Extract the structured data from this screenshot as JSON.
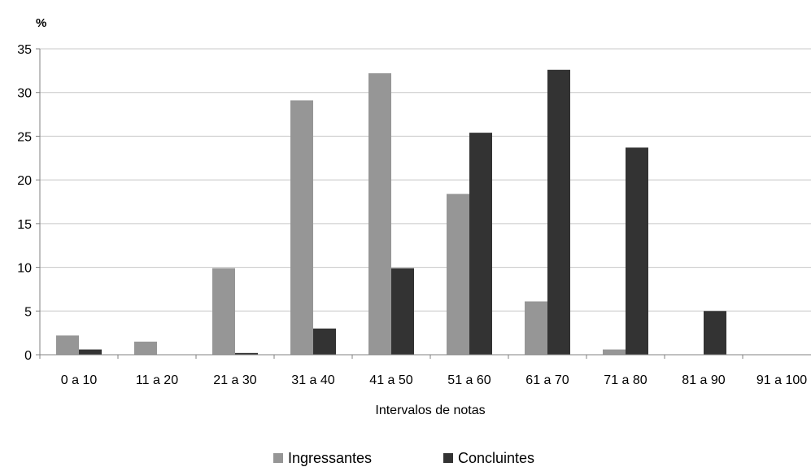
{
  "chart_data": {
    "type": "bar",
    "unit_label": "%",
    "xlabel": "Intervalos de notas",
    "ylabel": "",
    "ylim": [
      0,
      35
    ],
    "yticks": [
      0,
      5,
      10,
      15,
      20,
      25,
      30,
      35
    ],
    "categories": [
      "0 a 10",
      "11 a 20",
      "21 a 30",
      "31 a 40",
      "41 a 50",
      "51 a 60",
      "61 a 70",
      "71 a 80",
      "81 a 90",
      "91 a 100"
    ],
    "series": [
      {
        "name": "Ingressantes",
        "color": "#969696",
        "values": [
          2.2,
          1.5,
          9.9,
          29.1,
          32.2,
          18.4,
          6.1,
          0.6,
          0,
          0
        ]
      },
      {
        "name": "Concluintes",
        "color": "#333333",
        "values": [
          0.6,
          0,
          0.2,
          3.0,
          9.9,
          25.4,
          32.6,
          23.7,
          5.0,
          0
        ]
      }
    ],
    "grid": true,
    "legend_position": "bottom"
  }
}
